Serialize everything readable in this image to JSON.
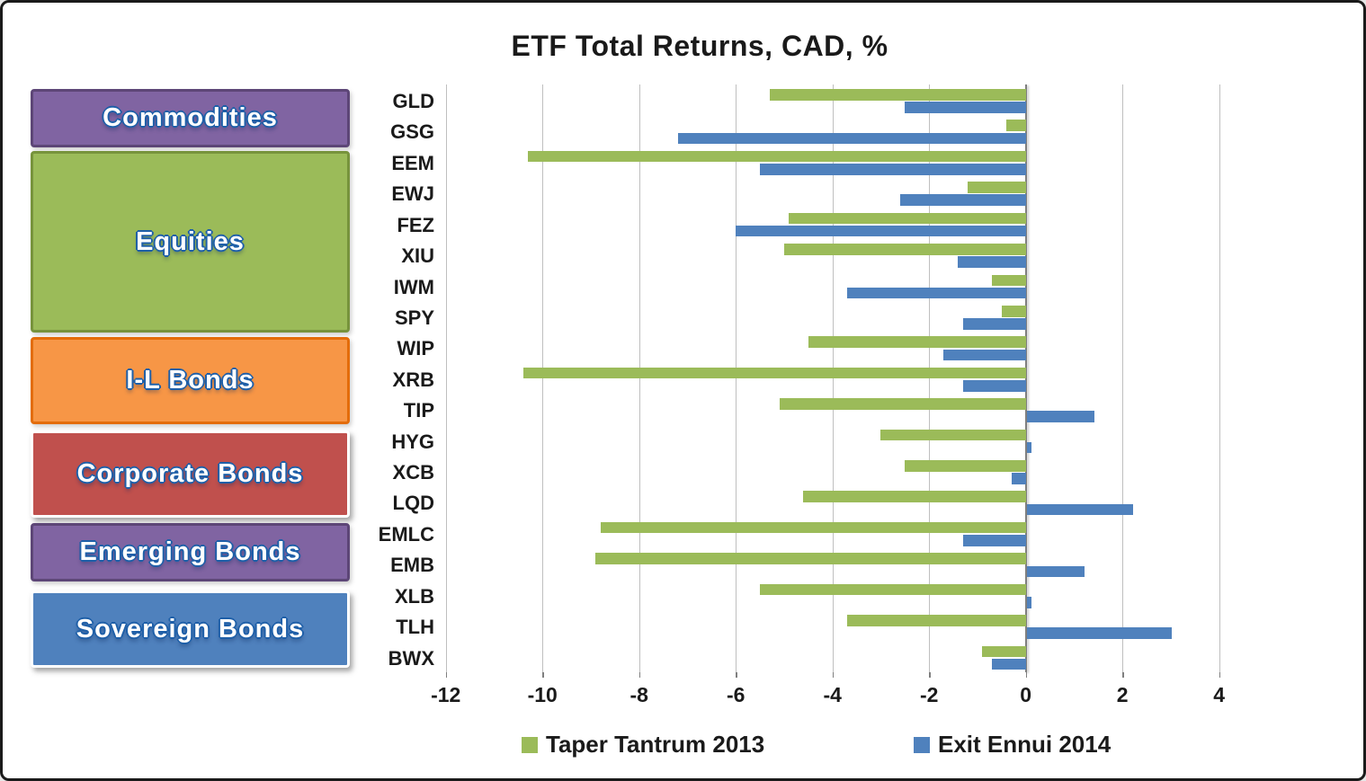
{
  "title": "ETF Total Returns, CAD, %",
  "colors": {
    "series_green": "#9BBB59",
    "series_blue": "#4F81BD",
    "gridline": "#BFBFBF",
    "zero_axis": "#7F7F7F",
    "text": "#1A1A1A",
    "sidebar_label_fill": "#FFFFFF",
    "sidebar_label_outline": "#1E5FA8"
  },
  "sidebar": {
    "boxes": [
      {
        "label": "Commodities",
        "fill": "#8064A2",
        "border": "#5D4677"
      },
      {
        "label": "Equities",
        "fill": "#9BBB59",
        "border": "#77933C"
      },
      {
        "label": "I-L Bonds",
        "fill": "#F79646",
        "border": "#E36C0A"
      },
      {
        "label": "Corporate Bonds",
        "fill": "#C0504D",
        "border": "#FFFFFF"
      },
      {
        "label": "Emerging Bonds",
        "fill": "#8064A2",
        "border": "#5D4677"
      },
      {
        "label": "Sovereign Bonds",
        "fill": "#4F81BD",
        "border": "#FFFFFF"
      }
    ]
  },
  "legend": {
    "items": [
      {
        "label": "Taper Tantrum 2013",
        "color": "#9BBB59"
      },
      {
        "label": "Exit Ennui 2014",
        "color": "#4F81BD"
      }
    ]
  },
  "chart_data": {
    "type": "bar",
    "orientation": "horizontal",
    "title": "ETF Total Returns, CAD, %",
    "categories": [
      "GLD",
      "GSG",
      "EEM",
      "EWJ",
      "FEZ",
      "XIU",
      "IWM",
      "SPY",
      "WIP",
      "XRB",
      "TIP",
      "HYG",
      "XCB",
      "LQD",
      "EMLC",
      "EMB",
      "XLB",
      "TLH",
      "BWX"
    ],
    "category_groups": [
      {
        "group": "Commodities",
        "tickers": [
          "GLD",
          "GSG"
        ]
      },
      {
        "group": "Equities",
        "tickers": [
          "EEM",
          "EWJ",
          "FEZ",
          "XIU",
          "IWM",
          "SPY"
        ]
      },
      {
        "group": "I-L Bonds",
        "tickers": [
          "WIP",
          "XRB",
          "TIP"
        ]
      },
      {
        "group": "Corporate Bonds",
        "tickers": [
          "HYG",
          "XCB",
          "LQD"
        ]
      },
      {
        "group": "Emerging Bonds",
        "tickers": [
          "EMLC",
          "EMB"
        ]
      },
      {
        "group": "Sovereign Bonds",
        "tickers": [
          "XLB",
          "TLH",
          "BWX"
        ]
      }
    ],
    "series": [
      {
        "name": "Taper Tantrum 2013",
        "color": "#9BBB59",
        "values": [
          -5.3,
          -0.4,
          -10.3,
          -1.2,
          -4.9,
          -5.0,
          -0.7,
          -0.5,
          -4.5,
          -10.4,
          -5.1,
          -3.0,
          -2.5,
          -4.6,
          -8.8,
          -8.9,
          -5.5,
          -3.7,
          -0.9
        ]
      },
      {
        "name": "Exit Ennui 2014",
        "color": "#4F81BD",
        "values": [
          -2.5,
          -7.2,
          -5.5,
          -2.6,
          -6.0,
          -1.4,
          -3.7,
          -1.3,
          -1.7,
          -1.3,
          1.4,
          0.1,
          -0.3,
          2.2,
          -1.3,
          1.2,
          0.1,
          3.0,
          -0.7
        ]
      }
    ],
    "xticks": [
      -12,
      -10,
      -8,
      -6,
      -4,
      -2,
      0,
      2,
      4
    ],
    "xlim": [
      -12.6,
      5.3
    ],
    "grid": true,
    "legend_position": "bottom",
    "value_unit": "%"
  }
}
